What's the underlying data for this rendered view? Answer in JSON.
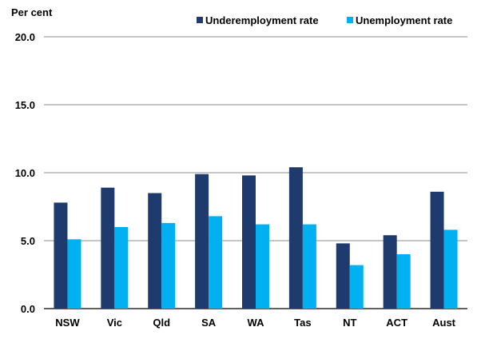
{
  "chart_data": {
    "type": "bar",
    "ylabel": "Per cent",
    "categories": [
      "NSW",
      "Vic",
      "Qld",
      "SA",
      "WA",
      "Tas",
      "NT",
      "ACT",
      "Aust"
    ],
    "ylim": [
      0,
      20
    ],
    "yticks": [
      "0.0",
      "5.0",
      "10.0",
      "15.0",
      "20.0"
    ],
    "grid": true,
    "legend_position": "top-right",
    "series": [
      {
        "name": "Underemployment rate",
        "color": "#1F3B6E",
        "values": [
          7.8,
          8.9,
          8.5,
          9.9,
          9.8,
          10.4,
          4.8,
          5.4,
          8.6
        ]
      },
      {
        "name": "Unemployment rate",
        "color": "#00B0F0",
        "values": [
          5.1,
          6.0,
          6.3,
          6.8,
          6.2,
          6.2,
          3.2,
          4.0,
          5.8
        ]
      }
    ]
  }
}
